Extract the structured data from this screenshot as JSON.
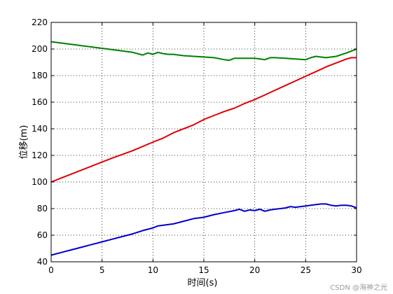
{
  "chart_data": {
    "type": "line",
    "xlabel": "时间(s)",
    "ylabel": "位移(m)",
    "xlim": [
      0,
      30
    ],
    "ylim": [
      40,
      220
    ],
    "xticks": [
      0,
      5,
      10,
      15,
      20,
      25,
      30
    ],
    "yticks": [
      40,
      60,
      80,
      100,
      120,
      140,
      160,
      180,
      200,
      220
    ],
    "grid": true,
    "grid_style": "dotted",
    "legend": "none",
    "series": [
      {
        "color": "#008000",
        "x": [
          0,
          2,
          4,
          6,
          8,
          9,
          9.5,
          10,
          10.5,
          11,
          11.5,
          12,
          13,
          14,
          15,
          16,
          17,
          17.5,
          18,
          19,
          20,
          21,
          21.5,
          22,
          23,
          24,
          25,
          25.5,
          26,
          27,
          28,
          29,
          30
        ],
        "y": [
          205.5,
          203.5,
          201.5,
          199.5,
          197.5,
          195.5,
          197,
          196,
          197.5,
          196.5,
          196,
          196,
          195,
          194.5,
          194,
          193.5,
          192,
          191.5,
          193,
          193,
          193,
          192,
          193.5,
          193.5,
          193,
          192.5,
          192,
          193.5,
          194.5,
          193.5,
          194.5,
          197,
          200
        ]
      },
      {
        "color": "#e00000",
        "x": [
          0,
          2,
          4,
          6,
          8,
          10,
          11,
          12,
          14,
          15,
          16,
          17,
          18,
          19,
          20,
          21,
          22,
          23,
          24,
          25,
          26,
          27,
          28,
          29,
          29.5,
          30
        ],
        "y": [
          100,
          106,
          112,
          118,
          123.5,
          130,
          133,
          137,
          143,
          147,
          150,
          153,
          155.5,
          159,
          162,
          165.5,
          169,
          172.5,
          176,
          179.5,
          183,
          186.5,
          189.5,
          192.5,
          193.5,
          193.5
        ]
      },
      {
        "color": "#0000cc",
        "x": [
          0,
          1,
          2,
          3,
          4,
          5,
          6,
          7,
          8,
          9,
          10,
          10.5,
          11,
          12,
          13,
          14,
          15,
          16,
          17,
          18,
          18.5,
          19,
          19.5,
          20,
          20.5,
          21,
          21.5,
          22,
          23,
          23.5,
          24,
          24.5,
          25,
          26,
          26.5,
          27,
          27.5,
          28,
          28.5,
          29,
          29.5,
          30
        ],
        "y": [
          45,
          47,
          49,
          51,
          53,
          55,
          57,
          59,
          61,
          63.5,
          65.5,
          67,
          67.5,
          68.5,
          70.5,
          72.5,
          73.5,
          75.5,
          77,
          78.5,
          79.5,
          78,
          79,
          78.5,
          79.5,
          78,
          79,
          79.5,
          80.5,
          81.5,
          81,
          81.5,
          82,
          83,
          83.5,
          83.5,
          82.5,
          82,
          82.5,
          82.5,
          82,
          80.5
        ]
      }
    ]
  },
  "watermark": "CSDN @海神之光"
}
